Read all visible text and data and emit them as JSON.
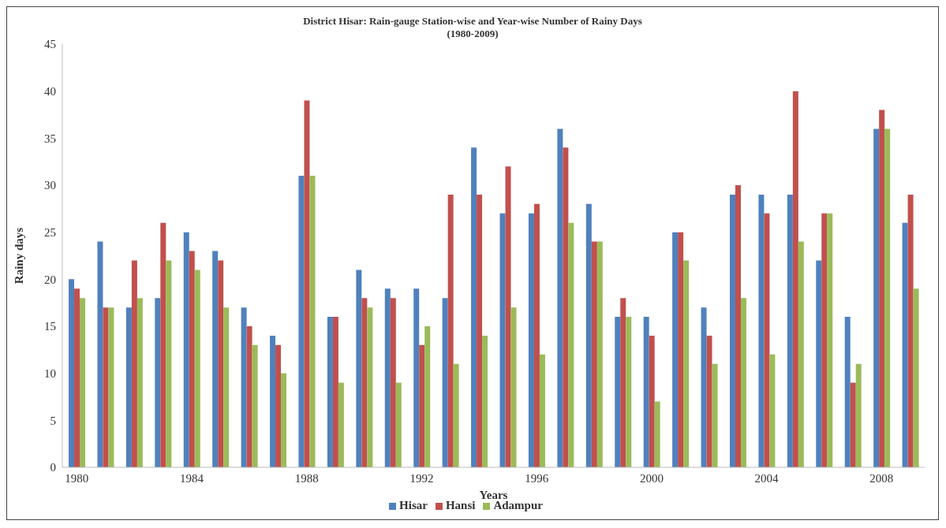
{
  "chart_data": {
    "type": "bar",
    "title": "District Hisar: Rain-gauge Station-wise and Year-wise Number of Rainy Days",
    "subtitle": "(1980-2009)",
    "xlabel": "Years",
    "ylabel": "Rainy days",
    "categories": [
      "1980",
      null,
      null,
      null,
      "1984",
      null,
      null,
      null,
      "1988",
      null,
      null,
      null,
      "1992",
      null,
      null,
      null,
      "1996",
      null,
      null,
      null,
      "2000",
      null,
      null,
      null,
      "2004",
      null,
      null,
      null,
      "2008",
      null
    ],
    "series": [
      {
        "name": "Hisar",
        "color": "#4f81bd",
        "values": [
          20,
          24,
          17,
          18,
          25,
          23,
          17,
          14,
          31,
          16,
          21,
          19,
          19,
          18,
          34,
          27,
          27,
          36,
          28,
          16,
          16,
          25,
          17,
          29,
          29,
          29,
          22,
          16,
          36,
          26
        ]
      },
      {
        "name": "Hansi",
        "color": "#c0504d",
        "values": [
          19,
          17,
          22,
          26,
          23,
          22,
          15,
          13,
          39,
          16,
          18,
          18,
          13,
          29,
          29,
          32,
          28,
          34,
          24,
          18,
          14,
          25,
          14,
          30,
          27,
          40,
          27,
          9,
          38,
          29
        ]
      },
      {
        "name": "Adampur",
        "color": "#9bbb59",
        "values": [
          18,
          17,
          18,
          22,
          21,
          17,
          13,
          10,
          31,
          9,
          17,
          9,
          15,
          11,
          14,
          17,
          12,
          26,
          24,
          16,
          7,
          22,
          11,
          18,
          12,
          24,
          27,
          11,
          36,
          19
        ]
      }
    ],
    "ylim": [
      0,
      45
    ],
    "yticks": [
      0,
      5,
      10,
      15,
      20,
      25,
      30,
      35,
      40,
      45
    ],
    "grid": false,
    "legend": "bottom"
  }
}
